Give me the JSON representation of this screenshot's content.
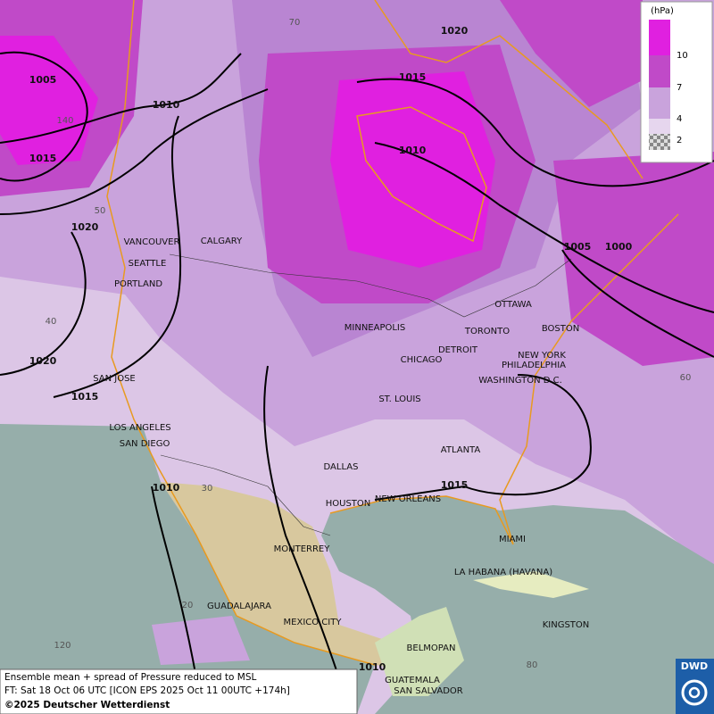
{
  "map": {
    "isobars": [
      1005,
      1010,
      1015,
      1020,
      1020,
      1015,
      1020,
      1015,
      1010,
      1005,
      1000,
      1015,
      1010,
      1010
    ],
    "graticule": [
      70,
      140,
      50,
      40,
      30,
      20,
      120,
      80,
      60
    ],
    "cities": [
      "VANCOUVER",
      "CALGARY",
      "SEATTLE",
      "PORTLAND",
      "MINNEAPOLIS",
      "TORONTO",
      "OTTAWA",
      "DETROIT",
      "BOSTON",
      "NEW YORK",
      "PHILADELPHIA",
      "WASHINGTON D.C.",
      "CHICAGO",
      "ST. LOUIS",
      "SAN JOSE",
      "LOS ANGELES",
      "SAN DIEGO",
      "ATLANTA",
      "DALLAS",
      "HOUSTON",
      "NEW ORLEANS",
      "MIAMI",
      "MONTERREY",
      "LA HABANA (HAVANA)",
      "GUADALAJARA",
      "MEXICO CITY",
      "BELMOPAN",
      "KINGSTON",
      "GUATEMALA",
      "SAN SALVADOR"
    ]
  },
  "legend": {
    "unit": "(hPa)",
    "levels": [
      10,
      7,
      4,
      2
    ]
  },
  "footer": {
    "title": "Ensemble mean + spread of Pressure reduced to MSL",
    "forecast": "FT: Sat 18 Oct 06 UTC [ICON EPS 2025 Oct 11 00UTC +174h]",
    "copyright": "©2025 Deutscher Wetterdienst"
  },
  "logo": "DWD"
}
